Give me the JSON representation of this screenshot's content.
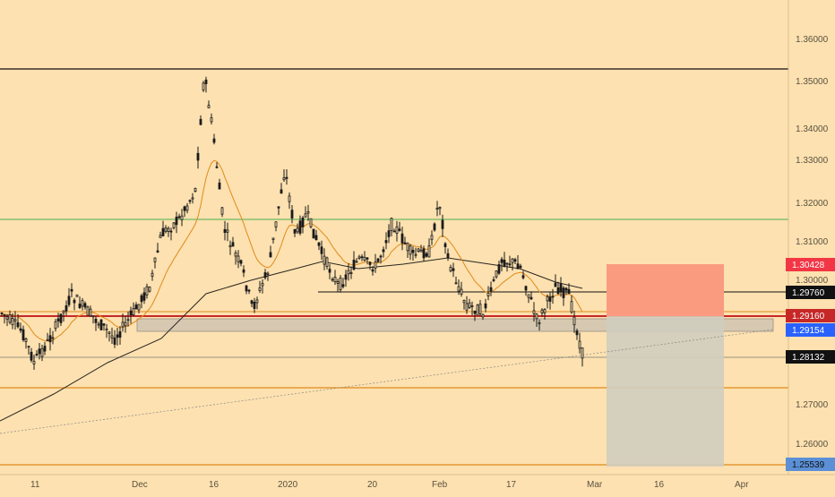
{
  "chart": {
    "background": "#fde1b0",
    "candle_color": "#1a1a1a",
    "ema_fast_color": "#e08a1a",
    "ma_slow_color": "#2a2520",
    "y_axis": {
      "ticks": [
        "1.36000",
        "1.35000",
        "1.34000",
        "1.33000",
        "1.32000",
        "1.31000",
        "1.30000",
        "1.27000",
        "1.26000"
      ]
    },
    "x_axis": {
      "ticks": [
        "11",
        "Dec",
        "16",
        "2020",
        "20",
        "Feb",
        "17",
        "Mar",
        "16",
        "Apr"
      ]
    },
    "price_tags": [
      {
        "id": "resist-high",
        "value": "1.30428",
        "bg": "#f23645",
        "fg": "#ffffff"
      },
      {
        "id": "level-2976",
        "value": "1.29760",
        "bg": "#111111",
        "fg": "#ffffff"
      },
      {
        "id": "level-2916",
        "value": "1.29160",
        "bg": "#c62828",
        "fg": "#ffffff"
      },
      {
        "id": "current-price",
        "value": "1.29154",
        "bg": "#2962ff",
        "fg": "#ffffff"
      },
      {
        "id": "level-2813",
        "value": "1.28132",
        "bg": "#111111",
        "fg": "#ffffff"
      },
      {
        "id": "level-2553",
        "value": "1.25539",
        "bg": "#5b8fd6",
        "fg": "#111111"
      }
    ]
  }
}
